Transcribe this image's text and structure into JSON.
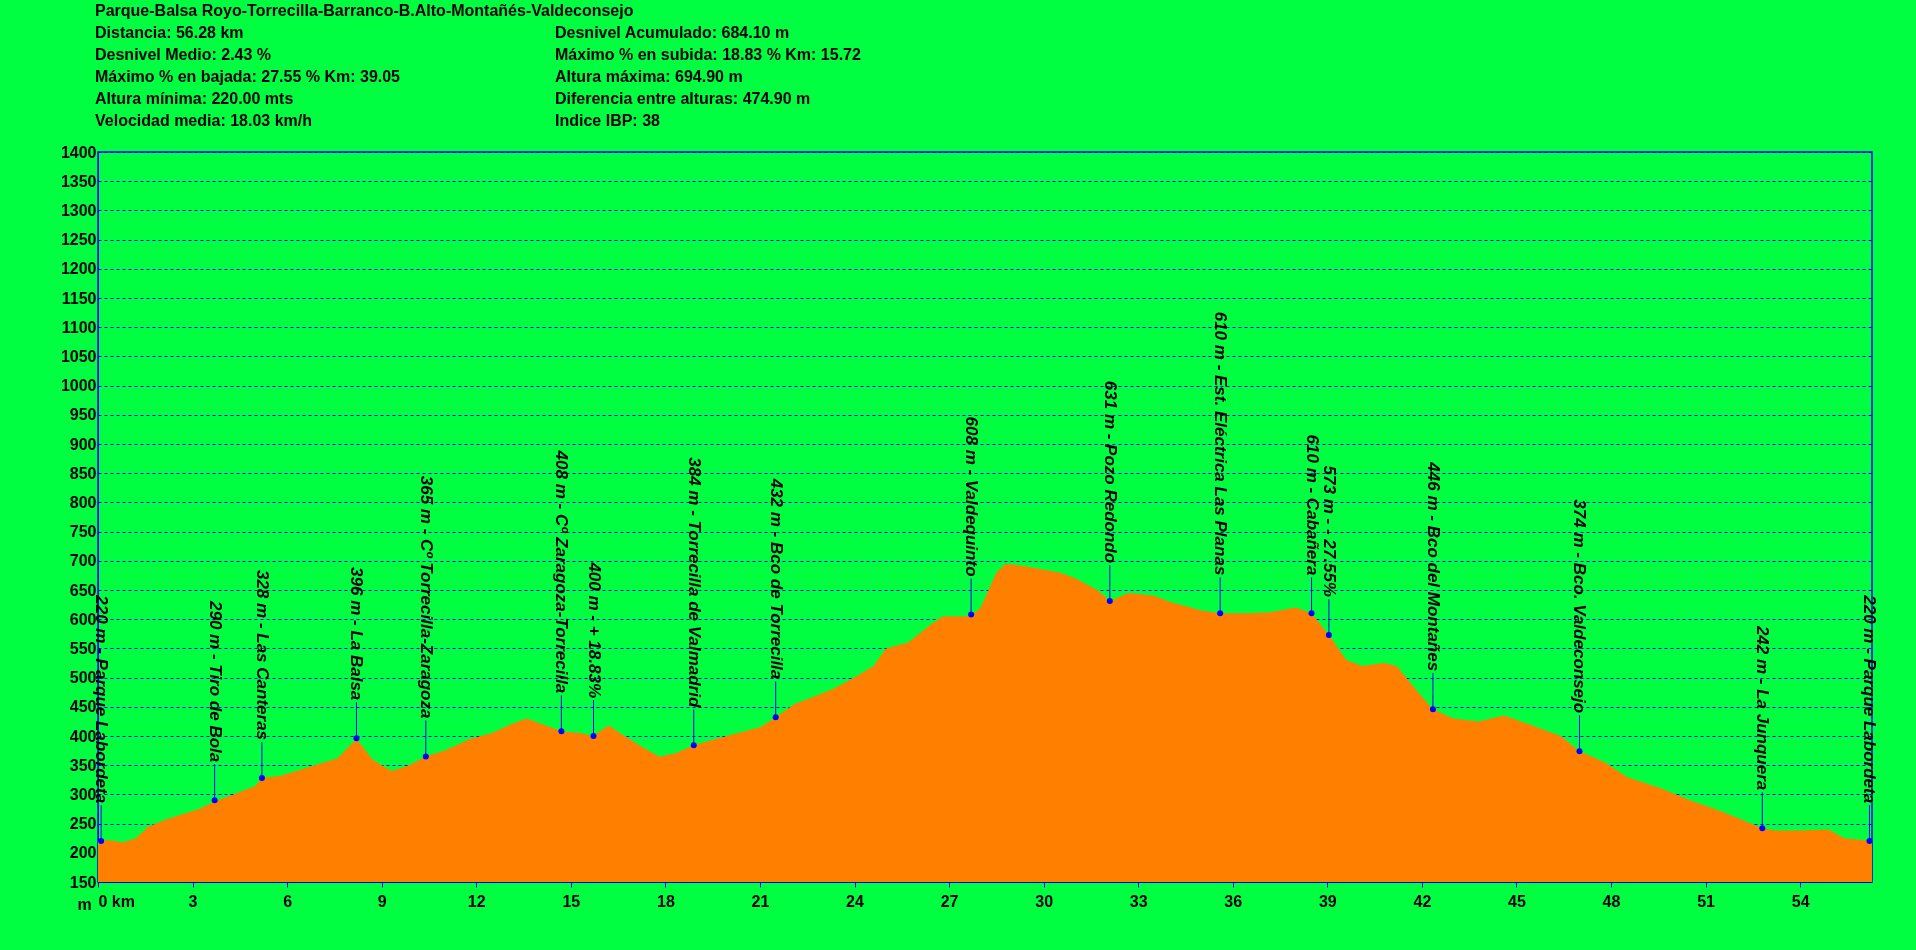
{
  "chart_data": {
    "type": "area",
    "title": "Parque-Balsa Royo-Torrecilla-Barranco-B.Alto-Montañés-Valdeconsejo",
    "ylabel": "m",
    "color": "#ff8000",
    "grid": "y",
    "xlim": [
      0,
      56.28
    ],
    "xticks": [
      {
        "value": 0,
        "label": "0 km"
      },
      3,
      6,
      9,
      12,
      15,
      18,
      21,
      24,
      27,
      30,
      33,
      36,
      39,
      42,
      45,
      48,
      51,
      54
    ],
    "ylim": [
      150,
      1400
    ],
    "yticks": [
      150,
      200,
      250,
      300,
      350,
      400,
      450,
      500,
      550,
      600,
      650,
      700,
      750,
      800,
      850,
      900,
      950,
      1000,
      1050,
      1100,
      1150,
      1200,
      1250,
      1300,
      1350,
      1400
    ],
    "annotations": [
      "Distancia: 56.28 km",
      "Desnivel Acumulado: 684.10 m",
      "Desnivel Medio: 2.43 %",
      "Máximo % en subida: 18.83 % Km: 15.72",
      "Máximo % en bajada: 27.55 % Km: 39.05",
      "Altura máxima: 694.90 m",
      "Altura mínima: 220.00 mts",
      "Diferencia entre alturas: 474.90 m",
      "Velocidad media: 18.03 km/h",
      "Indice IBP: 38",
      {
        "text": "220 m - Parque Labordeta",
        "x": 0.1,
        "y": 220
      },
      {
        "text": "290 m - Tiro de Bola",
        "x": 3.7,
        "y": 290
      },
      {
        "text": "328 m - Las Canteras",
        "x": 5.2,
        "y": 328
      },
      {
        "text": "396 m - La Balsa",
        "x": 8.2,
        "y": 396
      },
      {
        "text": "365 m - Cº Torrecilla-Zaragoza",
        "x": 10.4,
        "y": 365
      },
      {
        "text": "408 m - Cº Zaragoza-Torrecilla",
        "x": 14.7,
        "y": 408
      },
      {
        "text": "400 m - + 18.83%",
        "x": 15.72,
        "y": 400
      },
      {
        "text": "384 m - Torrecilla de Valmadrid",
        "x": 18.9,
        "y": 384
      },
      {
        "text": "432 m - Bco de Torrecilla",
        "x": 21.5,
        "y": 432
      },
      {
        "text": "608 m - Valdequinto",
        "x": 27.7,
        "y": 608
      },
      {
        "text": "631 m - Pozo Redondo",
        "x": 32.1,
        "y": 631
      },
      {
        "text": "610 m - Est. Eléctrica Las Planas",
        "x": 35.6,
        "y": 610
      },
      {
        "text": "610 m - Cabañera",
        "x": 38.5,
        "y": 610
      },
      {
        "text": "573 m - - 27.55%",
        "x": 39.05,
        "y": 573
      },
      {
        "text": "446 m - Bco del Montañes",
        "x": 42.35,
        "y": 446
      },
      {
        "text": "374 m - Bco. Valdeconsejo",
        "x": 47.0,
        "y": 374
      },
      {
        "text": "242 m - La Junquera",
        "x": 52.8,
        "y": 242
      },
      {
        "text": "220 m - Parque Labordeta",
        "x": 56.2,
        "y": 220
      }
    ],
    "x": [
      0,
      0.3,
      0.8,
      1.2,
      1.6,
      2.2,
      2.8,
      3.2,
      3.7,
      4.3,
      5.0,
      5.2,
      5.8,
      6.3,
      7.0,
      7.6,
      8.2,
      8.7,
      9.3,
      9.8,
      10.4,
      11.0,
      11.8,
      12.5,
      13.1,
      13.6,
      14.1,
      14.7,
      15.3,
      15.7,
      16.2,
      16.7,
      17.3,
      17.8,
      18.3,
      18.9,
      19.6,
      20.3,
      21.0,
      21.5,
      22.1,
      22.6,
      23.3,
      24.0,
      24.6,
      25.0,
      25.7,
      26.4,
      26.8,
      27.7,
      28.0,
      28.5,
      28.8,
      29.5,
      30.5,
      31.0,
      31.7,
      32.1,
      32.7,
      33.5,
      34.0,
      35.0,
      35.6,
      36.5,
      37.2,
      38.0,
      38.5,
      39.05,
      39.6,
      40.1,
      40.8,
      41.2,
      41.8,
      42.35,
      43.0,
      43.8,
      44.6,
      45.4,
      46.4,
      47.0,
      47.8,
      48.5,
      49.6,
      50.5,
      51.3,
      52.0,
      52.8,
      53.2,
      54.0,
      54.9,
      55.4,
      56.28
    ],
    "values": [
      220,
      222,
      218,
      225,
      245,
      258,
      268,
      275,
      288,
      300,
      315,
      328,
      332,
      340,
      352,
      362,
      395,
      360,
      340,
      348,
      365,
      375,
      395,
      405,
      420,
      430,
      420,
      408,
      405,
      400,
      418,
      400,
      380,
      365,
      370,
      384,
      395,
      405,
      415,
      432,
      455,
      465,
      480,
      500,
      520,
      550,
      560,
      590,
      605,
      605,
      620,
      680,
      695,
      690,
      680,
      670,
      650,
      631,
      645,
      640,
      630,
      615,
      610,
      610,
      612,
      620,
      610,
      573,
      530,
      520,
      525,
      520,
      480,
      446,
      430,
      425,
      435,
      420,
      400,
      374,
      355,
      330,
      310,
      290,
      275,
      260,
      242,
      238,
      238,
      240,
      225,
      220
    ]
  }
}
